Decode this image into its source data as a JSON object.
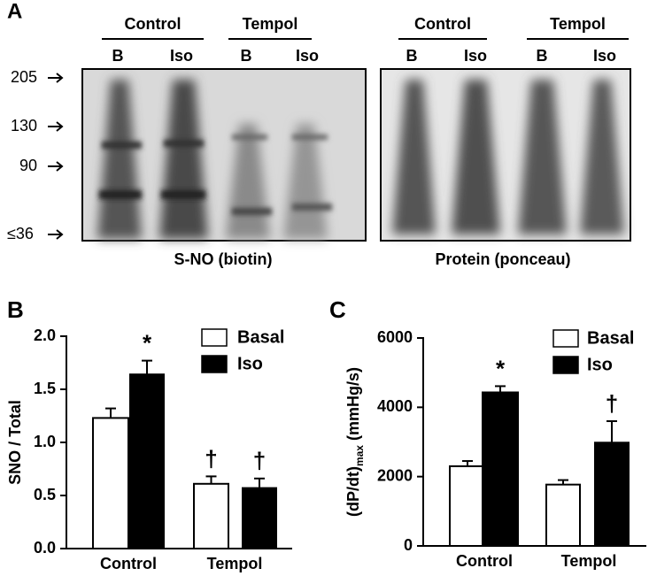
{
  "panel_a": {
    "label": "A",
    "markers": [
      "205",
      "130",
      "90",
      "≤36"
    ],
    "blots": [
      {
        "groups": [
          {
            "name": "Control",
            "lanes": [
              "B",
              "Iso"
            ]
          },
          {
            "name": "Tempol",
            "lanes": [
              "B",
              "Iso"
            ]
          }
        ],
        "caption": "S-NO (biotin)"
      },
      {
        "groups": [
          {
            "name": "Control",
            "lanes": [
              "B",
              "Iso"
            ]
          },
          {
            "name": "Tempol",
            "lanes": [
              "B",
              "Iso"
            ]
          }
        ],
        "caption": "Protein (ponceau)"
      }
    ]
  },
  "chart_data": [
    {
      "type": "bar",
      "panel_label": "B",
      "ylabel": "SNO / Total",
      "categories": [
        "Control",
        "Tempol"
      ],
      "series": [
        {
          "name": "Basal",
          "color": "#ffffff",
          "values": [
            1.23,
            0.61
          ],
          "errors": [
            0.09,
            0.07
          ],
          "significance": [
            null,
            "†"
          ]
        },
        {
          "name": "Iso",
          "color": "#000000",
          "values": [
            1.64,
            0.57
          ],
          "errors": [
            0.13,
            0.09
          ],
          "significance": [
            "*",
            "†"
          ]
        }
      ],
      "ylim": [
        0,
        2
      ],
      "yticks": [
        {
          "value": 0,
          "label": "0.0"
        },
        {
          "value": 0.5,
          "label": "0.5"
        },
        {
          "value": 1,
          "label": "1.0"
        },
        {
          "value": 1.5,
          "label": "1.5"
        },
        {
          "value": 2,
          "label": "2.0"
        }
      ]
    },
    {
      "type": "bar",
      "panel_label": "C",
      "ylabel": "(dP/dt)",
      "ylabel_sub": "max",
      "ylabel_suffix": " (mmHg/s)",
      "categories": [
        "Control",
        "Tempol"
      ],
      "series": [
        {
          "name": "Basal",
          "color": "#ffffff",
          "values": [
            2300,
            1770
          ],
          "errors": [
            150,
            130
          ],
          "significance": [
            null,
            null
          ]
        },
        {
          "name": "Iso",
          "color": "#000000",
          "values": [
            4430,
            2980
          ],
          "errors": [
            180,
            620
          ],
          "significance": [
            "*",
            "†"
          ]
        }
      ],
      "ylim": [
        0,
        6000
      ],
      "yticks": [
        0,
        2000,
        4000,
        6000
      ]
    }
  ]
}
